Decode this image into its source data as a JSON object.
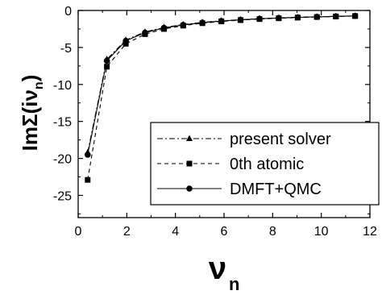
{
  "chart_data": {
    "type": "line",
    "xlabel": "ν",
    "xlabel_sub": "n",
    "ylabel": "ImΣ(iν",
    "ylabel_sub": "n",
    "ylabel_end": ")",
    "xlim": [
      0,
      12
    ],
    "ylim": [
      -28,
      0
    ],
    "xticks": [
      0,
      2,
      4,
      6,
      8,
      10,
      12
    ],
    "yticks": [
      0,
      -5,
      -10,
      -15,
      -20,
      -25
    ],
    "grid": false,
    "legend_position": "bottom-right",
    "series": [
      {
        "name": "present solver",
        "marker": "triangle",
        "line_style": "dash-dot",
        "x": [
          0.39,
          1.18,
          1.96,
          2.75,
          3.53,
          4.32,
          5.11,
          5.89,
          6.68,
          7.46,
          8.25,
          9.03,
          9.82,
          10.6,
          11.39
        ],
        "y": [
          -19.2,
          -6.6,
          -4.0,
          -2.9,
          -2.3,
          -1.9,
          -1.6,
          -1.4,
          -1.25,
          -1.1,
          -1.0,
          -0.92,
          -0.85,
          -0.79,
          -0.73
        ]
      },
      {
        "name": "0th atomic",
        "marker": "square",
        "line_style": "dashed",
        "x": [
          0.39,
          1.18,
          1.96,
          2.75,
          3.53,
          4.32,
          5.11,
          5.89,
          6.68,
          7.46,
          8.25,
          9.03,
          9.82,
          10.6,
          11.39
        ],
        "y": [
          -22.9,
          -7.6,
          -4.5,
          -3.2,
          -2.5,
          -2.05,
          -1.72,
          -1.48,
          -1.3,
          -1.16,
          -1.05,
          -0.96,
          -0.88,
          -0.81,
          -0.75
        ]
      },
      {
        "name": "DMFT+QMC",
        "marker": "circle",
        "line_style": "solid",
        "x": [
          0.39,
          1.18,
          1.96,
          2.75,
          3.53,
          4.32,
          5.11,
          5.89,
          6.68,
          7.46,
          8.25,
          9.03,
          9.82,
          10.6,
          11.39
        ],
        "y": [
          -19.5,
          -6.8,
          -4.1,
          -3.0,
          -2.35,
          -1.95,
          -1.65,
          -1.42,
          -1.26,
          -1.12,
          -1.01,
          -0.93,
          -0.86,
          -0.8,
          -0.74
        ]
      }
    ]
  }
}
